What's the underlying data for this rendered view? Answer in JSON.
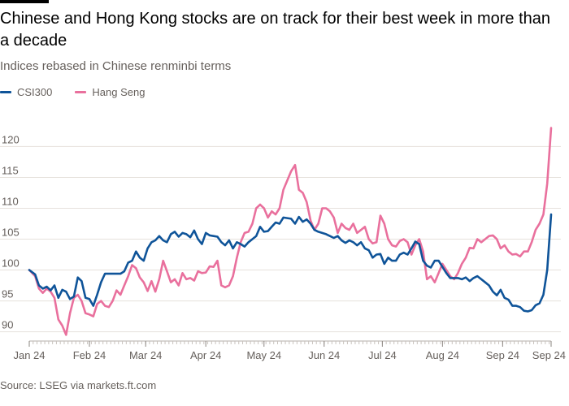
{
  "chart_data": {
    "type": "line",
    "title": "Chinese and Hong Kong stocks are on track for their best week in more than a decade",
    "subtitle": "Indices rebased in Chinese renminbi terms",
    "source": "Source: LSEG via markets.ft.com",
    "xlabel": "",
    "ylabel": "",
    "ylim": [
      88.5,
      124
    ],
    "grid": true,
    "legend_position": "top-left",
    "x_ticks": [
      {
        "label": "Jan 24",
        "day": 1
      },
      {
        "label": "Feb 24",
        "day": 32
      },
      {
        "label": "Mar 24",
        "day": 61
      },
      {
        "label": "Apr 24",
        "day": 92
      },
      {
        "label": "May 24",
        "day": 122
      },
      {
        "label": "Jun 24",
        "day": 153
      },
      {
        "label": "Jul 24",
        "day": 183
      },
      {
        "label": "Aug 24",
        "day": 214
      },
      {
        "label": "Sep 24",
        "day": 245
      },
      {
        "label": "Sep 24",
        "day": 270
      }
    ],
    "y_ticks": [
      90,
      95,
      100,
      105,
      110,
      115,
      120
    ],
    "x_domain": [
      1,
      270
    ],
    "series": [
      {
        "name": "CSI300",
        "color": "#0f5499",
        "points": [
          [
            1,
            100
          ],
          [
            4,
            99.3
          ],
          [
            6,
            97.5
          ],
          [
            8,
            97
          ],
          [
            10,
            97.3
          ],
          [
            12,
            96.7
          ],
          [
            14,
            97.5
          ],
          [
            16,
            95.5
          ],
          [
            18,
            96.8
          ],
          [
            20,
            96.5
          ],
          [
            22,
            95.3
          ],
          [
            24,
            95.7
          ],
          [
            26,
            98.8
          ],
          [
            28,
            98.2
          ],
          [
            30,
            95.5
          ],
          [
            32,
            95.3
          ],
          [
            34,
            94.2
          ],
          [
            36,
            96
          ],
          [
            38,
            98
          ],
          [
            40,
            99.4
          ],
          [
            44,
            99.4
          ],
          [
            48,
            99.4
          ],
          [
            50,
            99.8
          ],
          [
            52,
            101.2
          ],
          [
            54,
            101.5
          ],
          [
            56,
            103
          ],
          [
            58,
            102
          ],
          [
            60,
            101.5
          ],
          [
            62,
            103.5
          ],
          [
            64,
            104.5
          ],
          [
            66,
            104.8
          ],
          [
            68,
            105.5
          ],
          [
            70,
            104.8
          ],
          [
            72,
            104.5
          ],
          [
            74,
            105.8
          ],
          [
            76,
            106.2
          ],
          [
            78,
            105.4
          ],
          [
            80,
            106
          ],
          [
            82,
            105.8
          ],
          [
            84,
            105.3
          ],
          [
            86,
            106.4
          ],
          [
            88,
            105
          ],
          [
            90,
            104.2
          ],
          [
            92,
            106
          ],
          [
            94,
            105.6
          ],
          [
            96,
            105.5
          ],
          [
            98,
            105.4
          ],
          [
            100,
            104.5
          ],
          [
            102,
            104
          ],
          [
            104,
            104.8
          ],
          [
            106,
            103.5
          ],
          [
            108,
            104.5
          ],
          [
            110,
            104.2
          ],
          [
            112,
            103.8
          ],
          [
            114,
            104.5
          ],
          [
            116,
            105
          ],
          [
            118,
            105.5
          ],
          [
            120,
            107
          ],
          [
            122,
            106.2
          ],
          [
            124,
            106.3
          ],
          [
            126,
            107
          ],
          [
            128,
            107.7
          ],
          [
            130,
            107.5
          ],
          [
            132,
            108.5
          ],
          [
            134,
            108.4
          ],
          [
            136,
            108.3
          ],
          [
            138,
            107.5
          ],
          [
            140,
            108.6
          ],
          [
            142,
            107.8
          ],
          [
            144,
            108.2
          ],
          [
            146,
            107.5
          ],
          [
            148,
            106.5
          ],
          [
            150,
            106.2
          ],
          [
            152,
            106
          ],
          [
            154,
            105.8
          ],
          [
            156,
            105.5
          ],
          [
            158,
            105.2
          ],
          [
            160,
            105.5
          ],
          [
            162,
            104.8
          ],
          [
            164,
            104.4
          ],
          [
            166,
            104.8
          ],
          [
            168,
            104.5
          ],
          [
            170,
            104
          ],
          [
            172,
            104.5
          ],
          [
            174,
            103.5
          ],
          [
            176,
            103.2
          ],
          [
            178,
            102
          ],
          [
            180,
            102.5
          ],
          [
            182,
            102.6
          ],
          [
            184,
            101
          ],
          [
            186,
            102
          ],
          [
            188,
            101.5
          ],
          [
            190,
            101.5
          ],
          [
            192,
            102.5
          ],
          [
            194,
            102.8
          ],
          [
            196,
            102.5
          ],
          [
            198,
            103.5
          ],
          [
            200,
            104.6
          ],
          [
            202,
            104.2
          ],
          [
            204,
            101.5
          ],
          [
            206,
            100.7
          ],
          [
            208,
            100.4
          ],
          [
            210,
            101.5
          ],
          [
            212,
            101.5
          ],
          [
            214,
            100.5
          ],
          [
            216,
            99.5
          ],
          [
            218,
            98.7
          ],
          [
            222,
            98.7
          ],
          [
            224,
            98.5
          ],
          [
            226,
            98.8
          ],
          [
            228,
            98.2
          ],
          [
            230,
            98.7
          ],
          [
            232,
            99
          ],
          [
            234,
            98.5
          ],
          [
            236,
            98
          ],
          [
            238,
            97.5
          ],
          [
            240,
            96.5
          ],
          [
            242,
            95.9
          ],
          [
            244,
            96.8
          ],
          [
            246,
            95.5
          ],
          [
            248,
            95.2
          ],
          [
            250,
            94.2
          ],
          [
            252,
            94.2
          ],
          [
            254,
            94
          ],
          [
            256,
            93.4
          ],
          [
            258,
            93.3
          ],
          [
            260,
            93.5
          ],
          [
            262,
            94.3
          ],
          [
            264,
            94.6
          ],
          [
            266,
            96
          ],
          [
            268,
            100
          ],
          [
            270,
            109
          ]
        ]
      },
      {
        "name": "Hang Seng",
        "color": "#e9709d",
        "points": [
          [
            1,
            100
          ],
          [
            4,
            99
          ],
          [
            6,
            97
          ],
          [
            8,
            96.3
          ],
          [
            10,
            97
          ],
          [
            12,
            96.5
          ],
          [
            14,
            95.5
          ],
          [
            16,
            92
          ],
          [
            18,
            91
          ],
          [
            20,
            89.5
          ],
          [
            22,
            93
          ],
          [
            24,
            95.5
          ],
          [
            26,
            96
          ],
          [
            28,
            95
          ],
          [
            30,
            93
          ],
          [
            32,
            92.8
          ],
          [
            34,
            92.5
          ],
          [
            36,
            94.5
          ],
          [
            38,
            95
          ],
          [
            40,
            94.2
          ],
          [
            42,
            94
          ],
          [
            44,
            95
          ],
          [
            46,
            96.7
          ],
          [
            48,
            96
          ],
          [
            50,
            97.5
          ],
          [
            52,
            99
          ],
          [
            54,
            100.8
          ],
          [
            56,
            100.3
          ],
          [
            58,
            98.8
          ],
          [
            60,
            98
          ],
          [
            62,
            96.6
          ],
          [
            64,
            98.2
          ],
          [
            66,
            96.5
          ],
          [
            68,
            98.5
          ],
          [
            70,
            101.5
          ],
          [
            72,
            99.8
          ],
          [
            74,
            98
          ],
          [
            76,
            98.5
          ],
          [
            78,
            97.5
          ],
          [
            80,
            99.5
          ],
          [
            82,
            98.5
          ],
          [
            84,
            98.7
          ],
          [
            86,
            98.3
          ],
          [
            88,
            99.8
          ],
          [
            90,
            99.5
          ],
          [
            92,
            99.6
          ],
          [
            94,
            100.6
          ],
          [
            96,
            100.5
          ],
          [
            98,
            101.5
          ],
          [
            100,
            97.5
          ],
          [
            102,
            97.2
          ],
          [
            104,
            97.5
          ],
          [
            106,
            99
          ],
          [
            108,
            102
          ],
          [
            110,
            104.5
          ],
          [
            112,
            106
          ],
          [
            114,
            106.2
          ],
          [
            116,
            107.5
          ],
          [
            118,
            110
          ],
          [
            120,
            110.6
          ],
          [
            122,
            110
          ],
          [
            124,
            108.5
          ],
          [
            126,
            109.5
          ],
          [
            128,
            109
          ],
          [
            130,
            110
          ],
          [
            132,
            113
          ],
          [
            134,
            114.5
          ],
          [
            136,
            116
          ],
          [
            138,
            117
          ],
          [
            140,
            113
          ],
          [
            142,
            112.5
          ],
          [
            144,
            111
          ],
          [
            146,
            108
          ],
          [
            148,
            106.5
          ],
          [
            150,
            107.5
          ],
          [
            152,
            110
          ],
          [
            154,
            110
          ],
          [
            156,
            109.5
          ],
          [
            158,
            108.5
          ],
          [
            160,
            106
          ],
          [
            162,
            107.5
          ],
          [
            164,
            106.8
          ],
          [
            166,
            106.5
          ],
          [
            168,
            107.5
          ],
          [
            170,
            106
          ],
          [
            172,
            106.5
          ],
          [
            174,
            107
          ],
          [
            176,
            105
          ],
          [
            178,
            104.3
          ],
          [
            180,
            104.5
          ],
          [
            182,
            108.8
          ],
          [
            184,
            107.5
          ],
          [
            186,
            105
          ],
          [
            188,
            104
          ],
          [
            190,
            103.8
          ],
          [
            192,
            104.7
          ],
          [
            194,
            105
          ],
          [
            196,
            104.5
          ],
          [
            198,
            102.5
          ],
          [
            200,
            104
          ],
          [
            202,
            105
          ],
          [
            204,
            103
          ],
          [
            206,
            98.5
          ],
          [
            208,
            99
          ],
          [
            210,
            98
          ],
          [
            212,
            99.5
          ],
          [
            214,
            101
          ],
          [
            216,
            100
          ],
          [
            218,
            99
          ],
          [
            220,
            98.5
          ],
          [
            222,
            99.5
          ],
          [
            224,
            101
          ],
          [
            226,
            102
          ],
          [
            228,
            103.6
          ],
          [
            230,
            103.5
          ],
          [
            232,
            105
          ],
          [
            234,
            104.5
          ],
          [
            236,
            105
          ],
          [
            238,
            105.5
          ],
          [
            240,
            105.6
          ],
          [
            242,
            105
          ],
          [
            244,
            103.5
          ],
          [
            246,
            104
          ],
          [
            248,
            103
          ],
          [
            250,
            102.5
          ],
          [
            252,
            102.6
          ],
          [
            254,
            102.2
          ],
          [
            256,
            103
          ],
          [
            258,
            103
          ],
          [
            260,
            104.5
          ],
          [
            262,
            106.5
          ],
          [
            264,
            107.5
          ],
          [
            266,
            109
          ],
          [
            268,
            114
          ],
          [
            270,
            123
          ]
        ]
      }
    ]
  }
}
